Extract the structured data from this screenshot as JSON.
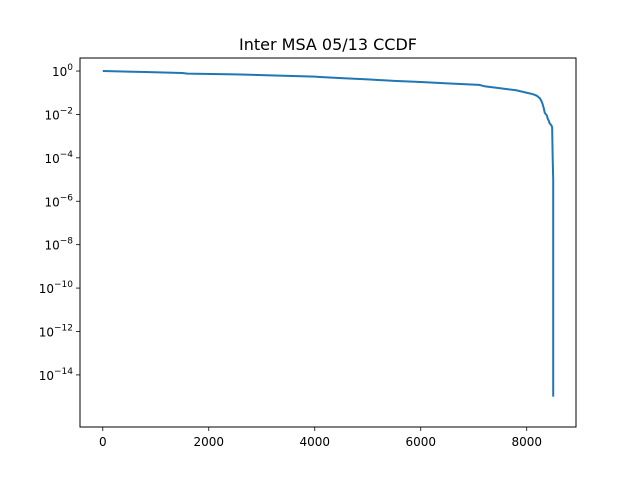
{
  "chart_data": {
    "type": "line",
    "title": "Inter MSA 05/13 CCDF",
    "xlabel": "",
    "ylabel": "",
    "yscale": "log",
    "xlim": [
      -430,
      8930
    ],
    "ylim_exponents": [
      -16.4,
      0.6
    ],
    "grid": false,
    "line_color": "#1f77b4",
    "x_ticks": [
      {
        "value": 0,
        "label": "0"
      },
      {
        "value": 2000,
        "label": "2000"
      },
      {
        "value": 4000,
        "label": "4000"
      },
      {
        "value": 6000,
        "label": "6000"
      },
      {
        "value": 8000,
        "label": "8000"
      }
    ],
    "y_ticks": [
      {
        "exp": 0,
        "label": "0"
      },
      {
        "exp": -2,
        "label": "−2"
      },
      {
        "exp": -4,
        "label": "−4"
      },
      {
        "exp": -6,
        "label": "−6"
      },
      {
        "exp": -8,
        "label": "−8"
      },
      {
        "exp": -10,
        "label": "−10"
      },
      {
        "exp": -12,
        "label": "−12"
      },
      {
        "exp": -14,
        "label": "−14"
      }
    ],
    "y_base_label": "10",
    "series": [
      {
        "x": [
          0,
          800,
          1500,
          1600,
          2500,
          3000,
          3500,
          4000,
          4100,
          4500,
          5000,
          5500,
          6000,
          6500,
          7000,
          7100,
          7200,
          7500,
          7800,
          8000,
          8100,
          8150,
          8200,
          8250,
          8280,
          8300,
          8320,
          8340,
          8380,
          8400,
          8420,
          8430,
          8450,
          8470,
          8480,
          8490,
          8500,
          8500,
          8500,
          8500,
          8500,
          8500,
          8500
        ],
        "y": [
          1.0,
          0.9,
          0.81,
          0.76,
          0.7,
          0.65,
          0.6,
          0.55,
          0.53,
          0.47,
          0.41,
          0.35,
          0.31,
          0.27,
          0.235,
          0.23,
          0.2,
          0.16,
          0.13,
          0.1,
          0.088,
          0.08,
          0.07,
          0.055,
          0.04,
          0.03,
          0.02,
          0.012,
          0.009,
          0.006,
          0.005,
          0.004,
          0.0035,
          0.003,
          0.0025,
          0.0001,
          1e-05,
          1e-06,
          1e-08,
          1e-10,
          1e-12,
          1e-14,
          1e-15
        ]
      }
    ]
  }
}
